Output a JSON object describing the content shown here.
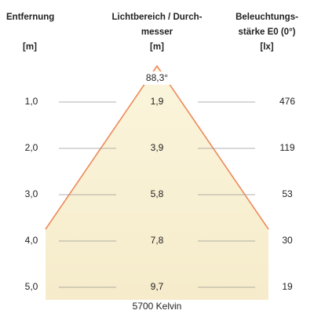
{
  "headers": {
    "distance": [
      "Entfernung",
      "[m]"
    ],
    "diameter": [
      "Lichtbereich / Durch-",
      "messer",
      "[m]"
    ],
    "illuminance": [
      "Beleuchtungs-",
      "stärke E0 (0°)",
      "[lx]"
    ]
  },
  "angle": "88,3°",
  "rows": [
    [
      "1,0",
      "1,9",
      "476"
    ],
    [
      "2,0",
      "3,9",
      "119"
    ],
    [
      "3,0",
      "5,8",
      "53"
    ],
    [
      "4,0",
      "7,8",
      "30"
    ],
    [
      "5,0",
      "9,7",
      "19"
    ]
  ],
  "color_temperature": "5700 Kelvin"
}
